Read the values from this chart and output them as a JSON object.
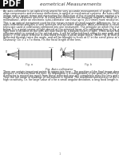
{
  "background_color": "#ffffff",
  "pdf_bg_color": "#111111",
  "pdf_text_color": "#ffffff",
  "title_text": "eometrical Measurements",
  "title_color": "#444444",
  "body_color": "#222222",
  "gray_line_color": "#bbbbbb",
  "para1": "An auto-collimator is an optical instrument for very accurate measurement of angles. They are typically used for align components and measure deflections in optical or mechanical systems. An auto-collimator works by projecting an image onto a target mirror and measuring the deflection of the returned image against a scale, either visually or by means of an electronic detector. A visual auto-collimator can measure angles as small as 0.5 arcminute (0.01 milliradians), while an electronic auto-collimator can have up to 100 times more resolution.",
  "para2": "This is an optical instrument used for the measurement of small angular differences. For small angular measurements, auto-collimation provides a very sensitive and accurate approach. Auto-collimation is essentially an infinity telescope used a collimation combined into one instrument. The principle on which the instrument works is given below. It is a point source of light placed at the principal focus of a collimating lens in Fig. a. The rays of light from it incident on the lens will now travel as a parallel beam of light. If this beam now strikes a plane reflector which is normal to the optical axis, it will be reflected back along its own path and focussed at the same point O. If the plane reflector is now tilted through a small angle theta, (Refer Fig. b) then parallel beam will be deflected through twice the angle, and will be brought to focus at O' in the same plane at a distance x from O. Obviously: Ox = 2 x f x theta, f is the focal length of the lens.",
  "para3": "There are certain important points to appreciate here : The position of the final image does not depend upon the distance of reflector from the lens. Its separation x is independent of the position of reflector from the lens. But if reflector is moved too much from these reflected rays will completely miss the lens and no image will be formed. Thus the full range of readings of instrument is limited. The maximum remoteness of the reflector is limited. For high sensitivity, i.e. for large value of x for a small angular deviation, a long focal length is required.",
  "fig_caption": "Fig. Auto-collimator",
  "page_number": "1",
  "fig_a_label": "Fig. a",
  "fig_b_label": "Fig. b"
}
